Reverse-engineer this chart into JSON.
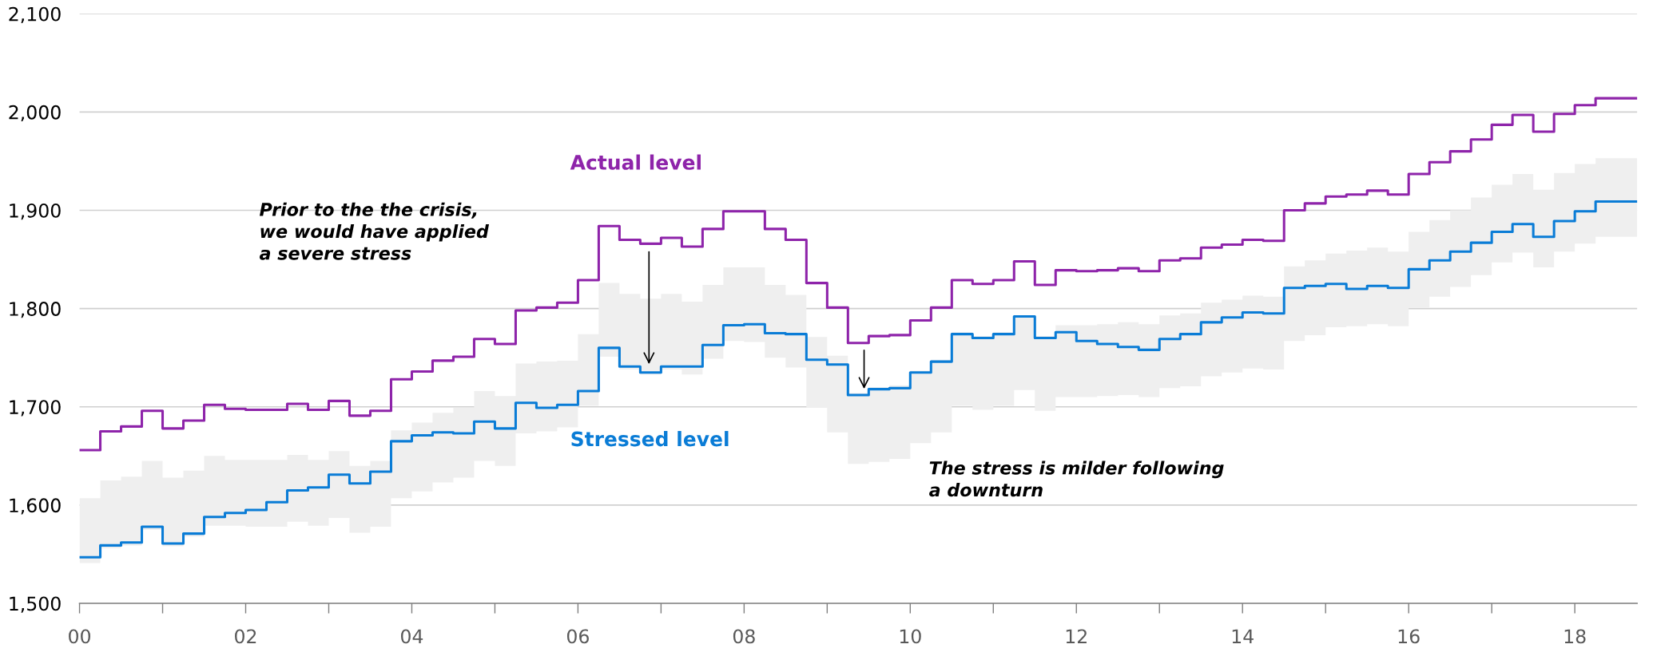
{
  "chart_data": {
    "type": "step",
    "x": [
      0,
      0.25,
      0.5,
      0.75,
      1,
      1.25,
      1.5,
      1.75,
      2,
      2.25,
      2.5,
      2.75,
      3,
      3.25,
      3.5,
      3.75,
      4,
      4.25,
      4.5,
      4.75,
      5,
      5.25,
      5.5,
      5.75,
      6,
      6.25,
      6.5,
      6.75,
      7,
      7.25,
      7.5,
      7.75,
      8,
      8.25,
      8.5,
      8.75,
      9,
      9.25,
      9.5,
      9.75,
      10,
      10.25,
      10.5,
      10.75,
      11,
      11.25,
      11.5,
      11.75,
      12,
      12.25,
      12.5,
      12.75,
      13,
      13.25,
      13.5,
      13.75,
      14,
      14.25,
      14.5,
      14.75,
      15,
      15.25,
      15.5,
      15.75,
      16,
      16.25,
      16.5,
      16.75,
      17,
      17.25,
      17.5,
      17.75,
      18,
      18.25,
      18.5,
      18.75
    ],
    "series": [
      {
        "name": "Actual level",
        "color": "#8e24aa",
        "values": [
          1656,
          1675,
          1680,
          1696,
          1678,
          1686,
          1702,
          1698,
          1697,
          1697,
          1703,
          1697,
          1706,
          1691,
          1696,
          1728,
          1736,
          1747,
          1751,
          1769,
          1764,
          1798,
          1801,
          1806,
          1829,
          1884,
          1870,
          1866,
          1872,
          1863,
          1881,
          1899,
          1899,
          1881,
          1870,
          1826,
          1801,
          1765,
          1772,
          1773,
          1788,
          1801,
          1829,
          1825,
          1829,
          1848,
          1824,
          1839,
          1838,
          1839,
          1841,
          1838,
          1849,
          1851,
          1862,
          1865,
          1870,
          1869,
          1900,
          1907,
          1914,
          1916,
          1920,
          1916,
          1937,
          1949,
          1960,
          1972,
          1987,
          1997,
          1980,
          1998,
          2007,
          2014,
          2014,
          2014
        ]
      },
      {
        "name": "Stressed level",
        "color": "#0a7cd6",
        "values": [
          1547,
          1559,
          1562,
          1578,
          1561,
          1571,
          1588,
          1592,
          1595,
          1603,
          1615,
          1618,
          1631,
          1622,
          1634,
          1665,
          1671,
          1674,
          1673,
          1685,
          1678,
          1704,
          1699,
          1702,
          1716,
          1760,
          1741,
          1735,
          1741,
          1741,
          1763,
          1783,
          1784,
          1775,
          1774,
          1748,
          1743,
          1712,
          1718,
          1719,
          1735,
          1746,
          1774,
          1770,
          1774,
          1792,
          1770,
          1776,
          1767,
          1764,
          1761,
          1758,
          1769,
          1774,
          1786,
          1791,
          1796,
          1795,
          1821,
          1823,
          1825,
          1820,
          1823,
          1821,
          1840,
          1849,
          1858,
          1867,
          1878,
          1886,
          1873,
          1889,
          1899,
          1909,
          1909,
          1909
        ],
        "upper": [
          1607,
          1625,
          1629,
          1645,
          1628,
          1635,
          1650,
          1646,
          1646,
          1646,
          1651,
          1646,
          1655,
          1640,
          1645,
          1676,
          1684,
          1694,
          1699,
          1716,
          1711,
          1744,
          1746,
          1747,
          1774,
          1826,
          1815,
          1810,
          1815,
          1807,
          1824,
          1842,
          1842,
          1824,
          1814,
          1771,
          1752,
          1714,
          1720,
          1722,
          1737,
          1748,
          1776,
          1772,
          1776,
          1793,
          1772,
          1783,
          1783,
          1784,
          1786,
          1784,
          1793,
          1795,
          1806,
          1809,
          1813,
          1812,
          1843,
          1849,
          1856,
          1859,
          1862,
          1858,
          1878,
          1890,
          1900,
          1913,
          1926,
          1937,
          1921,
          1938,
          1947,
          1953,
          1953,
          1953
        ],
        "lower": [
          1541,
          1556,
          1559,
          1575,
          1558,
          1568,
          1579,
          1579,
          1578,
          1578,
          1583,
          1579,
          1587,
          1572,
          1578,
          1607,
          1614,
          1623,
          1628,
          1645,
          1640,
          1673,
          1675,
          1679,
          1701,
          1751,
          1738,
          1733,
          1738,
          1733,
          1749,
          1767,
          1766,
          1750,
          1740,
          1699,
          1674,
          1642,
          1644,
          1647,
          1663,
          1674,
          1701,
          1697,
          1701,
          1717,
          1696,
          1710,
          1710,
          1711,
          1712,
          1710,
          1719,
          1721,
          1731,
          1735,
          1739,
          1738,
          1767,
          1773,
          1781,
          1782,
          1784,
          1782,
          1801,
          1812,
          1822,
          1834,
          1847,
          1857,
          1842,
          1858,
          1866,
          1873,
          1873,
          1873
        ]
      }
    ],
    "annotations": [
      "Prior to the the crisis,\nwe would have applied\na severe stress",
      "The stress is milder following\na downturn"
    ],
    "xlim": [
      0,
      18.75
    ],
    "xticks": [
      {
        "value": 0,
        "label": "00"
      },
      {
        "value": 1,
        "label": null
      },
      {
        "value": 2,
        "label": "02"
      },
      {
        "value": 3,
        "label": null
      },
      {
        "value": 4,
        "label": "04"
      },
      {
        "value": 5,
        "label": null
      },
      {
        "value": 6,
        "label": "06"
      },
      {
        "value": 7,
        "label": null
      },
      {
        "value": 8,
        "label": "08"
      },
      {
        "value": 9,
        "label": null
      },
      {
        "value": 10,
        "label": "10"
      },
      {
        "value": 11,
        "label": null
      },
      {
        "value": 12,
        "label": "12"
      },
      {
        "value": 13,
        "label": null
      },
      {
        "value": 14,
        "label": "14"
      },
      {
        "value": 15,
        "label": null
      },
      {
        "value": 16,
        "label": "16"
      },
      {
        "value": 17,
        "label": null
      },
      {
        "value": 18,
        "label": "18"
      }
    ],
    "ylim": [
      1500,
      2100
    ],
    "yticks": [
      {
        "value": 1500,
        "label": "1,500"
      },
      {
        "value": 1600,
        "label": "1,600"
      },
      {
        "value": 1700,
        "label": "1,700"
      },
      {
        "value": 1800,
        "label": "1,800"
      },
      {
        "value": 1900,
        "label": "1,900"
      },
      {
        "value": 2000,
        "label": "2,000"
      },
      {
        "value": 2100,
        "label": "2,100"
      }
    ],
    "grid": "y",
    "legend": false
  }
}
